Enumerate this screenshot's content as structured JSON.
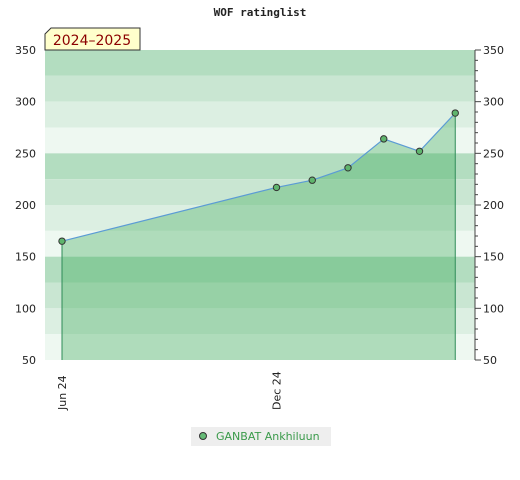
{
  "chart_data": {
    "type": "area",
    "title": "WOF ratinglist",
    "badge": "2024–2025",
    "xlabel": "",
    "ylabel": "",
    "ylim": [
      50,
      350
    ],
    "y_ticks": [
      50,
      100,
      150,
      200,
      250,
      300,
      350
    ],
    "x_tick_labels": [
      {
        "label": "Jun 24",
        "month_index": 0
      },
      {
        "label": "Dec 24",
        "month_index": 6
      }
    ],
    "series": [
      {
        "name": "GANBAT Ankhiluun",
        "color": "#2e8b57",
        "points": [
          {
            "month_index": 0,
            "rating": 165
          },
          {
            "month_index": 6,
            "rating": 217
          },
          {
            "month_index": 7,
            "rating": 224
          },
          {
            "month_index": 8,
            "rating": 236
          },
          {
            "month_index": 9,
            "rating": 264
          },
          {
            "month_index": 10,
            "rating": 252
          },
          {
            "month_index": 11,
            "rating": 289
          }
        ]
      }
    ],
    "legend_position": "bottom-center",
    "grid": false
  }
}
